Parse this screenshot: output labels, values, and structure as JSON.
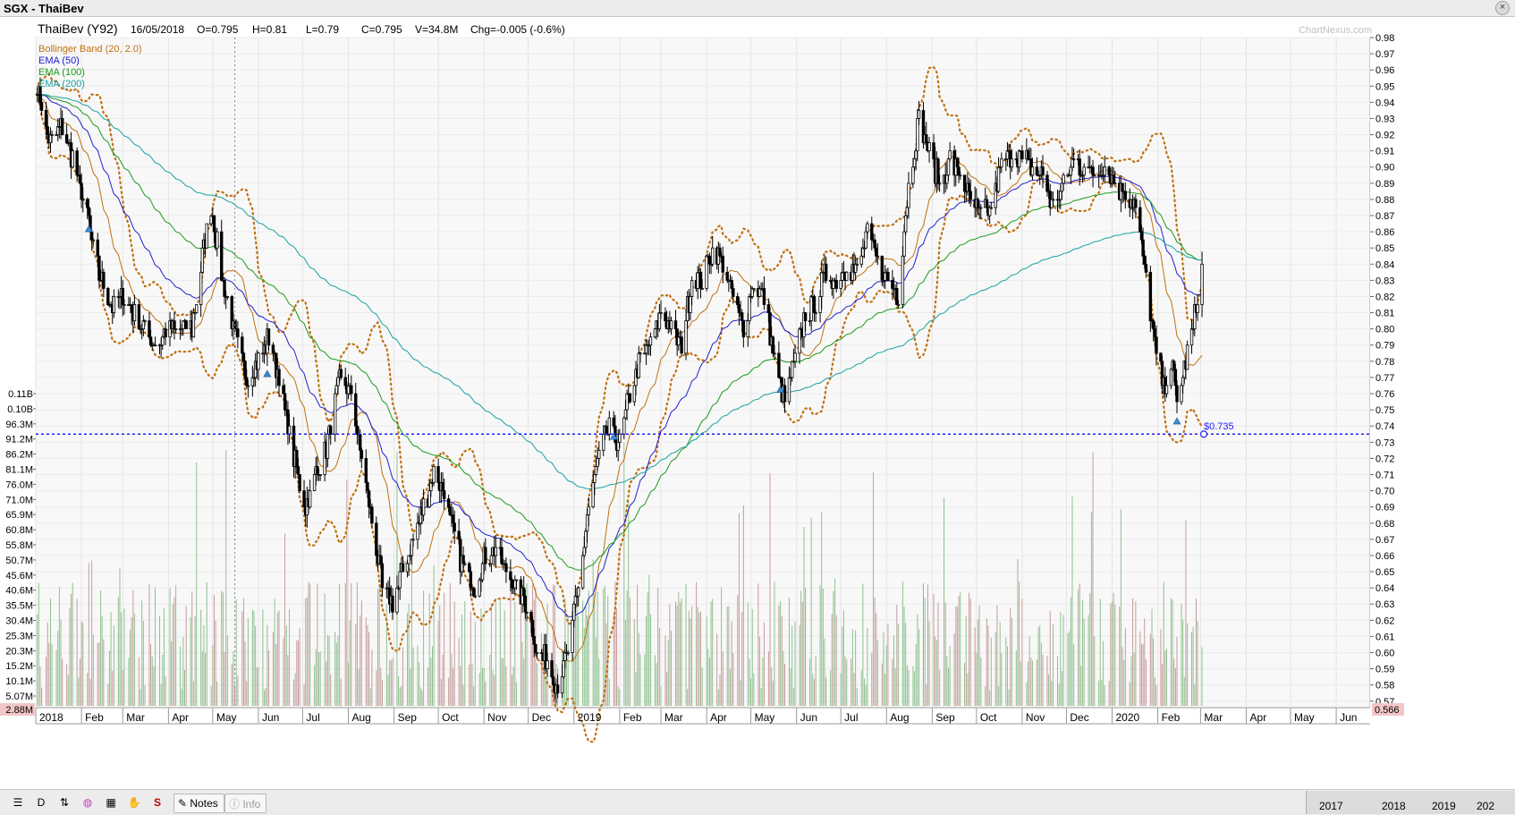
{
  "window": {
    "title": "SGX - ThaiBev",
    "close_glyph": "×"
  },
  "header": {
    "name": "ThaiBev (Y92)",
    "date": "16/05/2018",
    "open": "O=0.795",
    "high": "H=0.81",
    "low": "L=0.79",
    "close": "C=0.795",
    "volume": "V=34.8M",
    "change": "Chg=-0.005 (-0.6%)",
    "watermark": "ChartNexus.com"
  },
  "legend": [
    {
      "label": "Bollinger Band (20, 2.0)",
      "color": "#c07010"
    },
    {
      "label": "EMA (50)",
      "color": "#2020d0"
    },
    {
      "label": "EMA (100)",
      "color": "#1a9a1a"
    },
    {
      "label": "EMA (200)",
      "color": "#1aa0a0"
    }
  ],
  "colors": {
    "bollinger": "#c07010",
    "ema50": "#2020d0",
    "ema100": "#1a9a1a",
    "ema200": "#1aa0a0",
    "candle": "#000000",
    "volume_down": "#c89a9a",
    "volume_up": "#8fc08f",
    "support": "#2020ff",
    "marker": "#3a8ad0"
  },
  "chart_data": {
    "type": "candlestick",
    "price_axis": {
      "min": 0.566,
      "max": 0.98,
      "ticks": [
        "0.98",
        "0.97",
        "0.96",
        "0.95",
        "0.94",
        "0.93",
        "0.92",
        "0.91",
        "0.90",
        "0.89",
        "0.88",
        "0.87",
        "0.86",
        "0.85",
        "0.84",
        "0.83",
        "0.82",
        "0.81",
        "0.80",
        "0.79",
        "0.78",
        "0.77",
        "0.76",
        "0.75",
        "0.74",
        "0.73",
        "0.72",
        "0.71",
        "0.70",
        "0.69",
        "0.68",
        "0.67",
        "0.66",
        "0.65",
        "0.64",
        "0.63",
        "0.62",
        "0.61",
        "0.60",
        "0.59",
        "0.58",
        "0.57"
      ],
      "floor_label": "0.566"
    },
    "volume_axis": {
      "ticks": [
        "0.11B",
        "0.10B",
        "96.3M",
        "91.2M",
        "86.2M",
        "81.1M",
        "76.0M",
        "71.0M",
        "65.9M",
        "60.8M",
        "55.8M",
        "50.7M",
        "45.6M",
        "40.6M",
        "35.5M",
        "30.4M",
        "25.3M",
        "20.3M",
        "15.2M",
        "10.1M",
        "5.07M"
      ],
      "floor_label": "2.88M"
    },
    "x_axis_labels": [
      "2018",
      "Feb",
      "Mar",
      "Apr",
      "May",
      "Jun",
      "Jul",
      "Aug",
      "Sep",
      "Oct",
      "Nov",
      "Dec",
      "2019",
      "Feb",
      "Mar",
      "Apr",
      "May",
      "Jun",
      "Jul",
      "Aug",
      "Sep",
      "Oct",
      "Nov",
      "Dec",
      "2020",
      "Feb",
      "Mar",
      "Apr",
      "May",
      "Jun"
    ],
    "support_level": {
      "label": "$0.735",
      "value": 0.735
    },
    "series": [
      {
        "name": "Bollinger Band (20, 2.0)"
      },
      {
        "name": "EMA (50)"
      },
      {
        "name": "EMA (100)"
      },
      {
        "name": "EMA (200)"
      }
    ],
    "close_anchors": [
      [
        "2018-01-02",
        0.95
      ],
      [
        "2018-01-10",
        0.915
      ],
      [
        "2018-01-18",
        0.925
      ],
      [
        "2018-01-26",
        0.905
      ],
      [
        "2018-02-05",
        0.87
      ],
      [
        "2018-02-09",
        0.85
      ],
      [
        "2018-02-14",
        0.83
      ],
      [
        "2018-02-22",
        0.815
      ],
      [
        "2018-03-01",
        0.82
      ],
      [
        "2018-03-09",
        0.81
      ],
      [
        "2018-03-16",
        0.8
      ],
      [
        "2018-03-23",
        0.79
      ],
      [
        "2018-04-02",
        0.8
      ],
      [
        "2018-04-10",
        0.8
      ],
      [
        "2018-04-17",
        0.8
      ],
      [
        "2018-04-24",
        0.845
      ],
      [
        "2018-04-30",
        0.875
      ],
      [
        "2018-05-07",
        0.835
      ],
      [
        "2018-05-16",
        0.795
      ],
      [
        "2018-05-25",
        0.77
      ],
      [
        "2018-06-01",
        0.78
      ],
      [
        "2018-06-08",
        0.795
      ],
      [
        "2018-06-15",
        0.77
      ],
      [
        "2018-06-25",
        0.72
      ],
      [
        "2018-07-03",
        0.69
      ],
      [
        "2018-07-10",
        0.71
      ],
      [
        "2018-07-18",
        0.73
      ],
      [
        "2018-07-26",
        0.77
      ],
      [
        "2018-08-03",
        0.76
      ],
      [
        "2018-08-10",
        0.72
      ],
      [
        "2018-08-17",
        0.68
      ],
      [
        "2018-08-24",
        0.64
      ],
      [
        "2018-08-31",
        0.63
      ],
      [
        "2018-09-07",
        0.65
      ],
      [
        "2018-09-14",
        0.67
      ],
      [
        "2018-09-21",
        0.69
      ],
      [
        "2018-09-28",
        0.71
      ],
      [
        "2018-10-05",
        0.7
      ],
      [
        "2018-10-12",
        0.67
      ],
      [
        "2018-10-19",
        0.65
      ],
      [
        "2018-10-26",
        0.64
      ],
      [
        "2018-11-02",
        0.66
      ],
      [
        "2018-11-09",
        0.665
      ],
      [
        "2018-11-16",
        0.65
      ],
      [
        "2018-11-23",
        0.64
      ],
      [
        "2018-11-30",
        0.63
      ],
      [
        "2018-12-07",
        0.6
      ],
      [
        "2018-12-14",
        0.595
      ],
      [
        "2018-12-21",
        0.58
      ],
      [
        "2018-12-28",
        0.6
      ],
      [
        "2019-01-04",
        0.64
      ],
      [
        "2019-01-11",
        0.69
      ],
      [
        "2019-01-18",
        0.72
      ],
      [
        "2019-01-25",
        0.74
      ],
      [
        "2019-02-01",
        0.73
      ],
      [
        "2019-02-08",
        0.76
      ],
      [
        "2019-02-15",
        0.78
      ],
      [
        "2019-02-22",
        0.79
      ],
      [
        "2019-03-01",
        0.81
      ],
      [
        "2019-03-08",
        0.8
      ],
      [
        "2019-03-15",
        0.79
      ],
      [
        "2019-03-22",
        0.83
      ],
      [
        "2019-03-29",
        0.83
      ],
      [
        "2019-04-05",
        0.85
      ],
      [
        "2019-04-12",
        0.84
      ],
      [
        "2019-04-19",
        0.82
      ],
      [
        "2019-04-26",
        0.8
      ],
      [
        "2019-05-03",
        0.83
      ],
      [
        "2019-05-10",
        0.82
      ],
      [
        "2019-05-17",
        0.78
      ],
      [
        "2019-05-24",
        0.755
      ],
      [
        "2019-05-31",
        0.78
      ],
      [
        "2019-06-07",
        0.81
      ],
      [
        "2019-06-14",
        0.815
      ],
      [
        "2019-06-21",
        0.835
      ],
      [
        "2019-06-28",
        0.83
      ],
      [
        "2019-07-05",
        0.84
      ],
      [
        "2019-07-12",
        0.835
      ],
      [
        "2019-07-19",
        0.86
      ],
      [
        "2019-07-26",
        0.84
      ],
      [
        "2019-08-02",
        0.83
      ],
      [
        "2019-08-09",
        0.82
      ],
      [
        "2019-08-16",
        0.89
      ],
      [
        "2019-08-23",
        0.93
      ],
      [
        "2019-08-30",
        0.91
      ],
      [
        "2019-09-06",
        0.89
      ],
      [
        "2019-09-13",
        0.905
      ],
      [
        "2019-09-20",
        0.895
      ],
      [
        "2019-09-27",
        0.88
      ],
      [
        "2019-10-04",
        0.87
      ],
      [
        "2019-10-11",
        0.875
      ],
      [
        "2019-10-18",
        0.9
      ],
      [
        "2019-10-25",
        0.91
      ],
      [
        "2019-11-01",
        0.905
      ],
      [
        "2019-11-08",
        0.9
      ],
      [
        "2019-11-15",
        0.895
      ],
      [
        "2019-11-22",
        0.875
      ],
      [
        "2019-11-29",
        0.89
      ],
      [
        "2019-12-06",
        0.905
      ],
      [
        "2019-12-13",
        0.9
      ],
      [
        "2019-12-20",
        0.895
      ],
      [
        "2019-12-27",
        0.9
      ],
      [
        "2020-01-03",
        0.89
      ],
      [
        "2020-01-10",
        0.885
      ],
      [
        "2020-01-17",
        0.875
      ],
      [
        "2020-01-24",
        0.83
      ],
      [
        "2020-01-31",
        0.785
      ],
      [
        "2020-02-05",
        0.765
      ],
      [
        "2020-02-10",
        0.78
      ],
      [
        "2020-02-14",
        0.755
      ],
      [
        "2020-02-18",
        0.77
      ],
      [
        "2020-02-21",
        0.785
      ],
      [
        "2020-02-25",
        0.8
      ],
      [
        "2020-02-28",
        0.82
      ],
      [
        "2020-03-02",
        0.835
      ]
    ]
  },
  "toolbar": {
    "items": [
      {
        "glyph": "☰",
        "name": "menu-icon"
      },
      {
        "glyph": "D",
        "name": "daily-period-icon"
      },
      {
        "glyph": "⇅",
        "name": "indicator-icon"
      },
      {
        "glyph": "◍",
        "name": "color-wheel-icon"
      },
      {
        "glyph": "▦",
        "name": "layout-icon"
      },
      {
        "glyph": "✋",
        "name": "hand-icon"
      },
      {
        "glyph": "S",
        "name": "sr-icon"
      }
    ],
    "notes_label": "Notes",
    "info_label": "Info",
    "years": [
      "2017",
      "2018",
      "2019",
      "202"
    ]
  }
}
